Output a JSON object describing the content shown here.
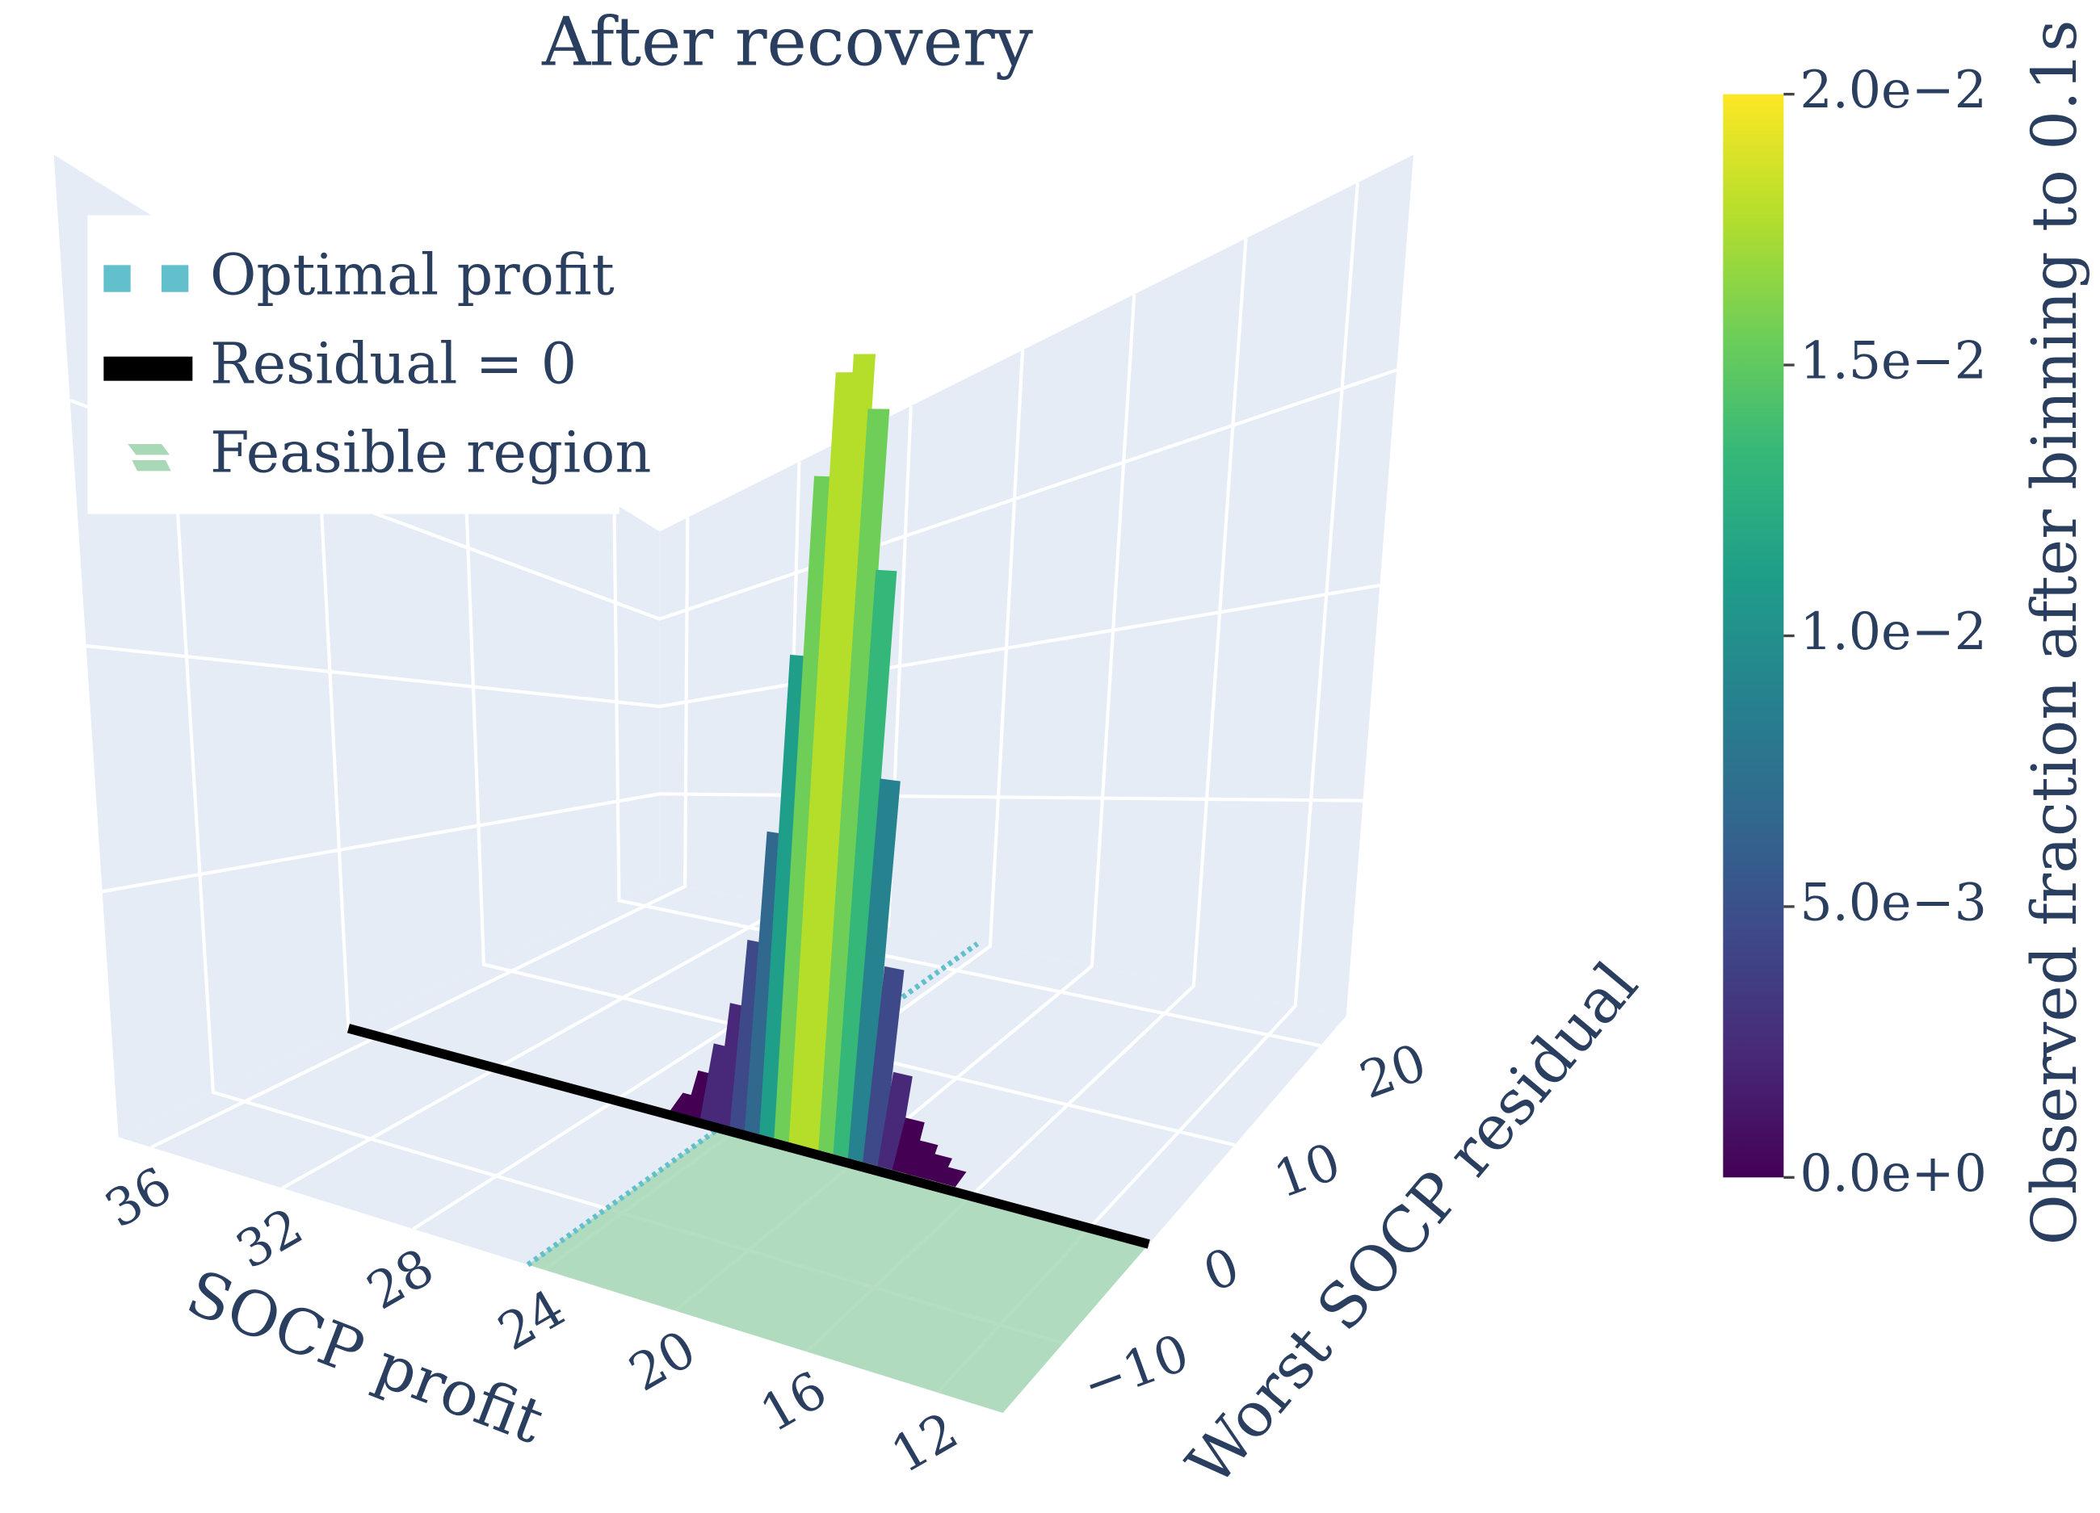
{
  "chart_data": {
    "type": "surface3d",
    "title": "After recovery",
    "xaxis_title": "SOCP profit",
    "yaxis_title": "Worst SOCP residual",
    "colorbar_title": "Observed fraction after binning to 0.1s",
    "xlim": [
      37,
      10
    ],
    "xticks": [
      36,
      32,
      28,
      24,
      20,
      16,
      12
    ],
    "ylim": [
      -17,
      23
    ],
    "yticks": [
      20,
      10,
      0,
      {
        "value": -10,
        "label": "−10"
      }
    ],
    "zlim": [
      0,
      0.018
    ],
    "x": [
      26,
      25.5,
      25,
      24.5,
      24,
      23.5,
      23,
      22.5,
      22,
      21.5,
      21,
      20.5,
      20,
      19.5,
      19,
      18.5,
      18,
      17.5,
      17
    ],
    "values": [
      0.0002,
      0.0008,
      0.0015,
      0.0025,
      0.004,
      0.0065,
      0.0105,
      0.0145,
      0.0168,
      0.0172,
      0.016,
      0.0125,
      0.008,
      0.004,
      0.0018,
      0.0009,
      0.0005,
      0.0003,
      0.0001
    ],
    "colorscale": [
      "#440154",
      "#482878",
      "#3e4989",
      "#31688e",
      "#26828e",
      "#1f9e89",
      "#35b779",
      "#6ece58",
      "#b5de2b",
      "#fde725"
    ],
    "colorbar_ticks": [
      {
        "value": 0,
        "label": "0.0e+0"
      },
      {
        "value": 0.005,
        "label": "5.0e−3"
      },
      {
        "value": 0.01,
        "label": "1.0e−2"
      },
      {
        "value": 0.015,
        "label": "1.5e−2"
      },
      {
        "value": 0.02,
        "label": "2.0e−2"
      }
    ],
    "optimal_profit": 24.5,
    "residual_zero": 0,
    "legend": {
      "position": "upper left",
      "entries": [
        {
          "name": "Optimal profit",
          "color": "#62c0cc"
        },
        {
          "name": "Residual = 0",
          "color": "#000000"
        },
        {
          "name": "Feasible region",
          "color": "#a8d8b5"
        }
      ]
    }
  }
}
